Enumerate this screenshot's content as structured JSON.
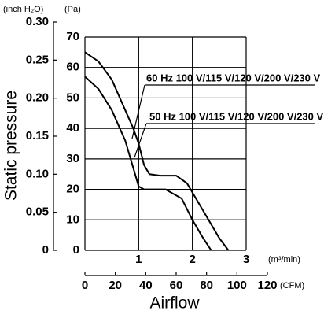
{
  "chart_data": {
    "type": "line",
    "y_label": "Static pressure",
    "x_label": "Airflow",
    "y_unit": "(Pa)",
    "y2_unit": "(inch H₂O)",
    "x_unit": "(m³/min)",
    "x2_unit": "(CFM)",
    "xlim": [
      0,
      3
    ],
    "xticks": [
      1,
      2,
      3
    ],
    "x2lim": [
      0,
      120
    ],
    "x2ticks": [
      0,
      20,
      40,
      60,
      80,
      100,
      120
    ],
    "ylim": [
      0,
      70
    ],
    "yticks": [
      0,
      10,
      20,
      30,
      40,
      50,
      60,
      70
    ],
    "y2lim": [
      0,
      0.3
    ],
    "y2ticks": [
      0,
      0.05,
      {
        "value": 0.1,
        "label": "0.10"
      },
      0.15,
      {
        "value": 0.2,
        "label": "0.20"
      },
      0.25,
      {
        "value": 0.3,
        "label": "0.30"
      }
    ],
    "grid": true,
    "series": [
      {
        "name": "60 Hz 100 V/115 V/120 V/200 V/230 V",
        "color": "#000000",
        "x": [
          0,
          0.25,
          0.5,
          0.75,
          0.9,
          1.0,
          1.1,
          1.2,
          1.4,
          1.7,
          1.9,
          2.1,
          2.3,
          2.5,
          2.67
        ],
        "values": [
          65,
          62,
          56,
          46,
          40,
          35,
          28,
          25,
          24.5,
          24.5,
          22,
          16,
          10,
          4,
          0
        ]
      },
      {
        "name": "50 Hz 100 V/115 V/120 V/200 V/230 V",
        "color": "#000000",
        "x": [
          0,
          0.25,
          0.5,
          0.75,
          0.9,
          1.0,
          1.1,
          1.5,
          1.8,
          2.0,
          2.2,
          2.35
        ],
        "values": [
          57,
          53,
          46,
          36,
          27,
          21,
          20,
          20,
          17,
          10,
          4,
          0
        ]
      }
    ]
  }
}
